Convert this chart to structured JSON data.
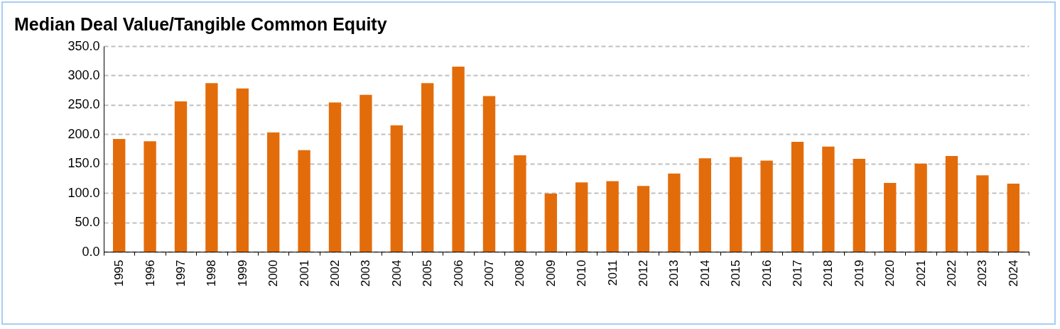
{
  "chart_data": {
    "type": "bar",
    "title": "Median Deal Value/Tangible Common Equity",
    "categories": [
      "1995",
      "1996",
      "1997",
      "1998",
      "1999",
      "2000",
      "2001",
      "2002",
      "2003",
      "2004",
      "2005",
      "2006",
      "2007",
      "2008",
      "2009",
      "2010",
      "2011",
      "2012",
      "2013",
      "2014",
      "2015",
      "2016",
      "2017",
      "2018",
      "2019",
      "2020",
      "2021",
      "2022",
      "2023",
      "2024"
    ],
    "values": [
      192,
      188,
      256,
      287,
      278,
      203,
      173,
      254,
      267,
      215,
      287,
      315,
      265,
      164,
      99,
      118,
      120,
      112,
      133,
      159,
      161,
      155,
      187,
      179,
      158,
      117,
      150,
      163,
      130,
      116
    ],
    "color": "#e36c0a",
    "ylim": [
      0,
      350
    ],
    "yticks": [
      {
        "value": 0,
        "label": "0.0"
      },
      {
        "value": 50,
        "label": "50.0"
      },
      {
        "value": 100,
        "label": "100.0"
      },
      {
        "value": 150,
        "label": "150.0"
      },
      {
        "value": 200,
        "label": "200.0"
      },
      {
        "value": 250,
        "label": "250.0"
      },
      {
        "value": 300,
        "label": "300.0"
      },
      {
        "value": 350,
        "label": "350.0"
      }
    ],
    "grid": "y"
  }
}
